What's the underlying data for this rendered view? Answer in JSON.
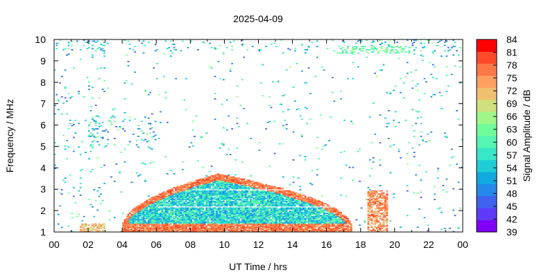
{
  "chart_data": {
    "type": "heatmap",
    "title": "2025-04-09",
    "xlabel": "UT Time / hrs",
    "ylabel": "Frequency / MHz",
    "xlim": [
      0,
      24
    ],
    "ylim": [
      1,
      10
    ],
    "x_ticks": [
      "00",
      "02",
      "04",
      "06",
      "08",
      "10",
      "12",
      "14",
      "16",
      "18",
      "20",
      "22",
      "00"
    ],
    "y_ticks": [
      "1",
      "2",
      "3",
      "4",
      "5",
      "6",
      "7",
      "8",
      "9",
      "10"
    ],
    "colorbar": {
      "label": "Signal Amplitude / dB",
      "min": 39,
      "max": 84,
      "ticks": [
        "39",
        "42",
        "45",
        "48",
        "51",
        "54",
        "57",
        "60",
        "63",
        "66",
        "69",
        "72",
        "75",
        "78",
        "81",
        "84"
      ],
      "colors": [
        "#7f00ff",
        "#5f3bf9",
        "#4062f0",
        "#2489e8",
        "#10a9e0",
        "#20cdd6",
        "#3ae6c8",
        "#55f5b3",
        "#6ffd9b",
        "#9ff789",
        "#cfe07c",
        "#f0c070",
        "#ffa060",
        "#ff7848",
        "#ff4a28",
        "#ff0000"
      ]
    },
    "features": [
      {
        "kind": "dome",
        "t_start": 3.9,
        "t_end": 17.5,
        "f_peak": 3.7,
        "f_base": 1.0,
        "peak_time": 9.6,
        "edge_db": 74,
        "interior_db": 56
      },
      {
        "kind": "burst",
        "t_start": 18.3,
        "t_end": 19.6,
        "f_low": 1.0,
        "f_high": 2.9,
        "db": 75
      },
      {
        "kind": "burst",
        "t_start": 1.5,
        "t_end": 3.0,
        "f_low": 1.0,
        "f_high": 1.4,
        "db": 72
      },
      {
        "kind": "band",
        "t_start": 16.5,
        "t_end": 21.0,
        "f_low": 9.3,
        "f_high": 9.7,
        "db": 62
      }
    ]
  }
}
